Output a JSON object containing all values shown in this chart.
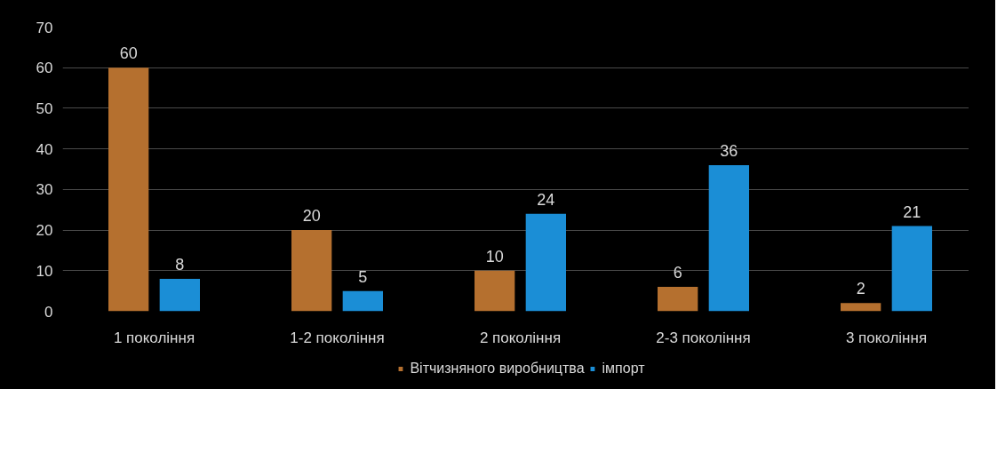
{
  "chart_data": {
    "type": "bar",
    "categories": [
      "1 покоління",
      "1-2 покоління",
      "2 покоління",
      "2-3 покоління",
      "3 покоління"
    ],
    "series": [
      {
        "name": "Вітчизняного виробництва",
        "color": "#b5702f",
        "values": [
          60,
          20,
          10,
          6,
          2
        ]
      },
      {
        "name": "імпорт",
        "color": "#1b8ed6",
        "values": [
          8,
          5,
          24,
          36,
          21
        ]
      }
    ],
    "ylim": [
      0,
      70
    ],
    "yticks": [
      0,
      10,
      20,
      30,
      40,
      50,
      60,
      70
    ],
    "grid": "y",
    "legend": "bottom",
    "data_labels": true
  }
}
